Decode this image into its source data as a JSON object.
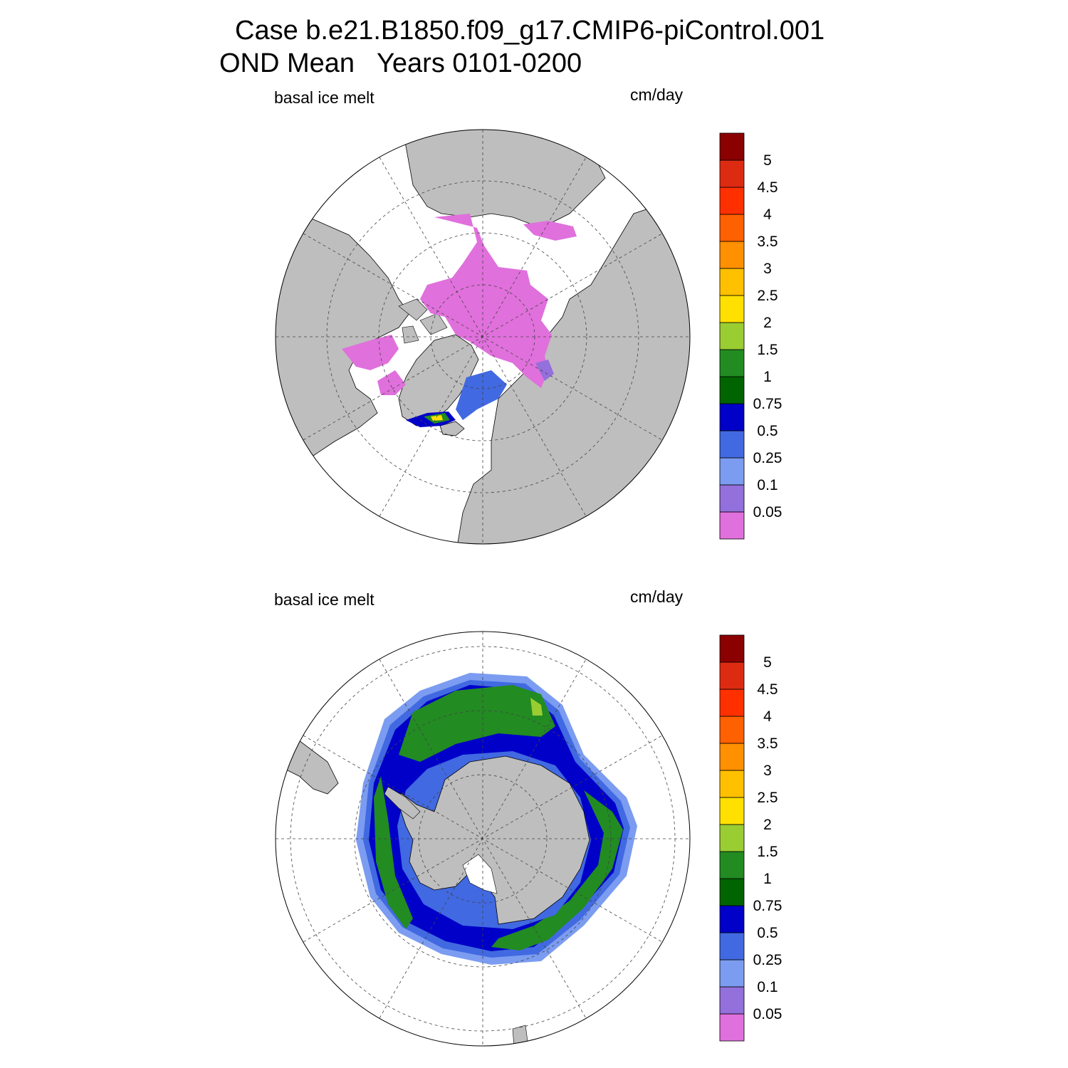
{
  "title": {
    "line1": "Case b.e21.B1850.f09_g17.CMIP6-piControl.001",
    "line2": "OND Mean   Years 0101-0200"
  },
  "colors": {
    "land": "#bebebe",
    "background": "#ffffff",
    "levels": [
      "#e070dc",
      "#9370db",
      "#7b9cf0",
      "#4169e1",
      "#0000c8",
      "#006400",
      "#228b22",
      "#9acd32",
      "#ffe000",
      "#ffc000",
      "#ff9000",
      "#ff6000",
      "#ff3000",
      "#dd2b12",
      "#8b0000"
    ]
  },
  "panels": [
    {
      "id": "arctic",
      "hemisphere": "Northern Hemisphere",
      "left_label": "basal ice melt",
      "right_label": "cm/day"
    },
    {
      "id": "antarctic",
      "hemisphere": "Southern Hemisphere",
      "left_label": "basal ice melt",
      "right_label": "cm/day"
    }
  ],
  "colorbar": {
    "units": "cm/day",
    "labels": [
      "0.05",
      "0.1",
      "0.25",
      "0.5",
      "0.75",
      "1",
      "1.5",
      "2",
      "2.5",
      "3",
      "3.5",
      "4",
      "4.5",
      "5"
    ]
  }
}
